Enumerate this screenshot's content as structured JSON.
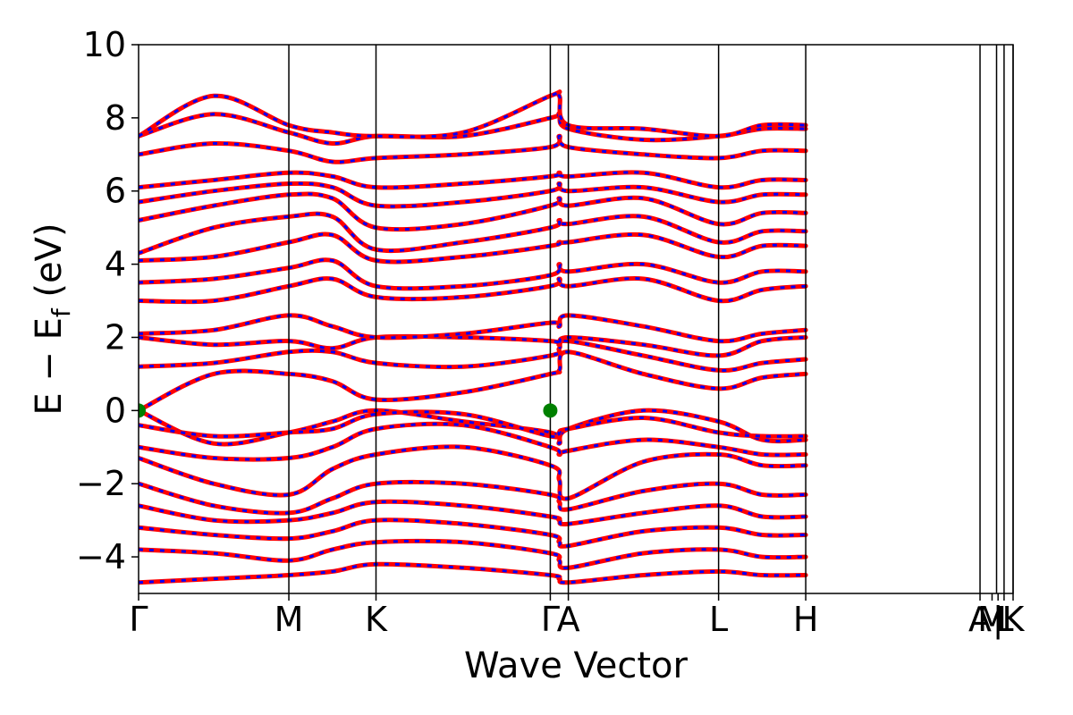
{
  "chart_data": {
    "type": "line",
    "title": "",
    "xlabel": "Wave Vector",
    "ylabel_main": "E − E",
    "ylabel_sub": "f",
    "ylabel_tail": " (eV)",
    "ylim": [
      -5,
      10
    ],
    "yticks": [
      -4,
      -2,
      0,
      2,
      4,
      6,
      8,
      10
    ],
    "ytick_labels": [
      "−4",
      "−2",
      "0",
      "2",
      "4",
      "6",
      "8",
      "10"
    ],
    "xlim": [
      0,
      5.82
    ],
    "kpoints": [
      {
        "label": "Γ",
        "x": 0.0
      },
      {
        "label": "M",
        "x": 1.0
      },
      {
        "label": "K",
        "x": 1.58
      },
      {
        "label": "Γ",
        "x": 2.74
      },
      {
        "label": "A",
        "x": 2.86
      },
      {
        "label": "L",
        "x": 3.86
      },
      {
        "label": "H",
        "x": 4.44
      },
      {
        "label": "A",
        "x": 5.6
      },
      {
        "label": "M",
        "x": 5.68
      },
      {
        "label": "|",
        "x": 5.72
      },
      {
        "label": "L",
        "x": 5.76
      },
      {
        "label": "K",
        "x": 5.82
      }
    ],
    "vertical_lines_x": [
      1.0,
      1.58,
      2.74,
      2.86,
      3.86,
      4.44,
      5.6,
      5.71,
      5.76,
      5.82
    ],
    "series_colors": {
      "primary": "#ff0000",
      "overlay": "#0000ff",
      "marker": "#008000"
    },
    "markers": [
      {
        "x": 0.0,
        "y": 0.0
      },
      {
        "x": 2.74,
        "y": 0.0
      }
    ],
    "bands": [
      {
        "name": "",
        "y": [
          0.0,
          -0.9,
          -0.6,
          -0.3,
          0.0,
          -0.3,
          -0.6,
          -0.9,
          -0.5,
          0.0,
          -0.3,
          -0.8,
          -0.8
        ]
      },
      {
        "name": "",
        "y": [
          -0.4,
          -0.7,
          -0.6,
          -0.5,
          -0.1,
          -0.1,
          -0.7,
          -0.6,
          -0.5,
          -0.2,
          -0.6,
          -0.7,
          -0.7
        ]
      },
      {
        "name": "",
        "y": [
          -1.0,
          -1.3,
          -1.3,
          -1.0,
          -0.5,
          -0.4,
          -1.0,
          -1.2,
          -1.1,
          -0.8,
          -1.0,
          -1.2,
          -1.2
        ]
      },
      {
        "name": "",
        "y": [
          -1.3,
          -2.0,
          -2.3,
          -1.6,
          -1.2,
          -1.0,
          -1.5,
          -1.9,
          -2.4,
          -1.4,
          -1.2,
          -1.5,
          -1.5
        ]
      },
      {
        "name": "",
        "y": [
          -2.0,
          -2.6,
          -2.8,
          -2.4,
          -2.0,
          -2.0,
          -2.3,
          -2.5,
          -2.7,
          -2.2,
          -2.0,
          -2.3,
          -2.3
        ]
      },
      {
        "name": "",
        "y": [
          -2.6,
          -3.0,
          -3.0,
          -2.8,
          -2.5,
          -2.6,
          -2.9,
          -3.0,
          -3.1,
          -2.8,
          -2.6,
          -2.9,
          -2.9
        ]
      },
      {
        "name": "",
        "y": [
          -3.2,
          -3.4,
          -3.5,
          -3.3,
          -3.0,
          -3.1,
          -3.4,
          -3.6,
          -3.7,
          -3.3,
          -3.2,
          -3.4,
          -3.4
        ]
      },
      {
        "name": "",
        "y": [
          -3.8,
          -3.9,
          -4.1,
          -3.8,
          -3.6,
          -3.6,
          -3.9,
          -4.1,
          -4.3,
          -3.9,
          -3.8,
          -4.0,
          -4.0
        ]
      },
      {
        "name": "",
        "y": [
          -4.7,
          -4.6,
          -4.5,
          -4.4,
          -4.2,
          -4.3,
          -4.5,
          -4.6,
          -4.7,
          -4.5,
          -4.4,
          -4.5,
          -4.5
        ]
      },
      {
        "name": "",
        "y": [
          0.0,
          1.0,
          1.0,
          0.8,
          0.3,
          0.5,
          1.0,
          1.1,
          1.6,
          1.0,
          0.6,
          0.9,
          1.0
        ]
      },
      {
        "name": "",
        "y": [
          1.2,
          1.3,
          1.6,
          1.6,
          1.3,
          1.2,
          1.5,
          1.7,
          1.9,
          1.5,
          1.1,
          1.3,
          1.4
        ]
      },
      {
        "name": "",
        "y": [
          2.0,
          1.8,
          1.9,
          1.7,
          2.0,
          2.0,
          1.9,
          1.8,
          2.0,
          1.8,
          1.5,
          1.9,
          2.0
        ]
      },
      {
        "name": "",
        "y": [
          2.1,
          2.2,
          2.6,
          2.3,
          2.0,
          2.1,
          2.4,
          2.3,
          2.6,
          2.3,
          1.9,
          2.1,
          2.2
        ]
      },
      {
        "name": "",
        "y": [
          3.0,
          3.0,
          3.4,
          3.6,
          3.1,
          3.1,
          3.4,
          3.6,
          3.4,
          3.6,
          3.0,
          3.3,
          3.4
        ]
      },
      {
        "name": "",
        "y": [
          3.5,
          3.6,
          3.9,
          4.1,
          3.4,
          3.4,
          3.7,
          4.0,
          3.8,
          4.0,
          3.5,
          3.8,
          3.8
        ]
      },
      {
        "name": "",
        "y": [
          4.1,
          4.2,
          4.6,
          4.8,
          4.1,
          4.2,
          4.5,
          4.6,
          4.6,
          4.8,
          4.2,
          4.5,
          4.5
        ]
      },
      {
        "name": "",
        "y": [
          4.3,
          5.0,
          5.3,
          5.3,
          4.4,
          4.6,
          5.0,
          5.2,
          5.1,
          5.3,
          4.6,
          4.9,
          4.9
        ]
      },
      {
        "name": "",
        "y": [
          5.2,
          5.6,
          5.9,
          5.8,
          5.0,
          5.1,
          5.6,
          5.8,
          5.6,
          5.8,
          5.1,
          5.4,
          5.4
        ]
      },
      {
        "name": "",
        "y": [
          5.7,
          6.0,
          6.2,
          6.1,
          5.6,
          5.7,
          6.0,
          6.2,
          6.0,
          6.1,
          5.7,
          5.9,
          5.9
        ]
      },
      {
        "name": "",
        "y": [
          6.1,
          6.3,
          6.5,
          6.4,
          6.1,
          6.2,
          6.4,
          6.5,
          6.4,
          6.5,
          6.1,
          6.3,
          6.3
        ]
      },
      {
        "name": "",
        "y": [
          7.0,
          7.3,
          7.1,
          6.8,
          6.9,
          7.0,
          7.2,
          7.5,
          7.2,
          7.0,
          6.9,
          7.1,
          7.1
        ]
      },
      {
        "name": "",
        "y": [
          7.5,
          8.1,
          7.6,
          7.3,
          7.5,
          7.5,
          8.0,
          8.1,
          7.7,
          7.4,
          7.5,
          7.7,
          7.7
        ]
      },
      {
        "name": "",
        "y": [
          7.5,
          8.6,
          7.8,
          7.6,
          7.5,
          7.6,
          8.6,
          8.6,
          7.8,
          7.7,
          7.5,
          7.8,
          7.8
        ]
      }
    ]
  }
}
